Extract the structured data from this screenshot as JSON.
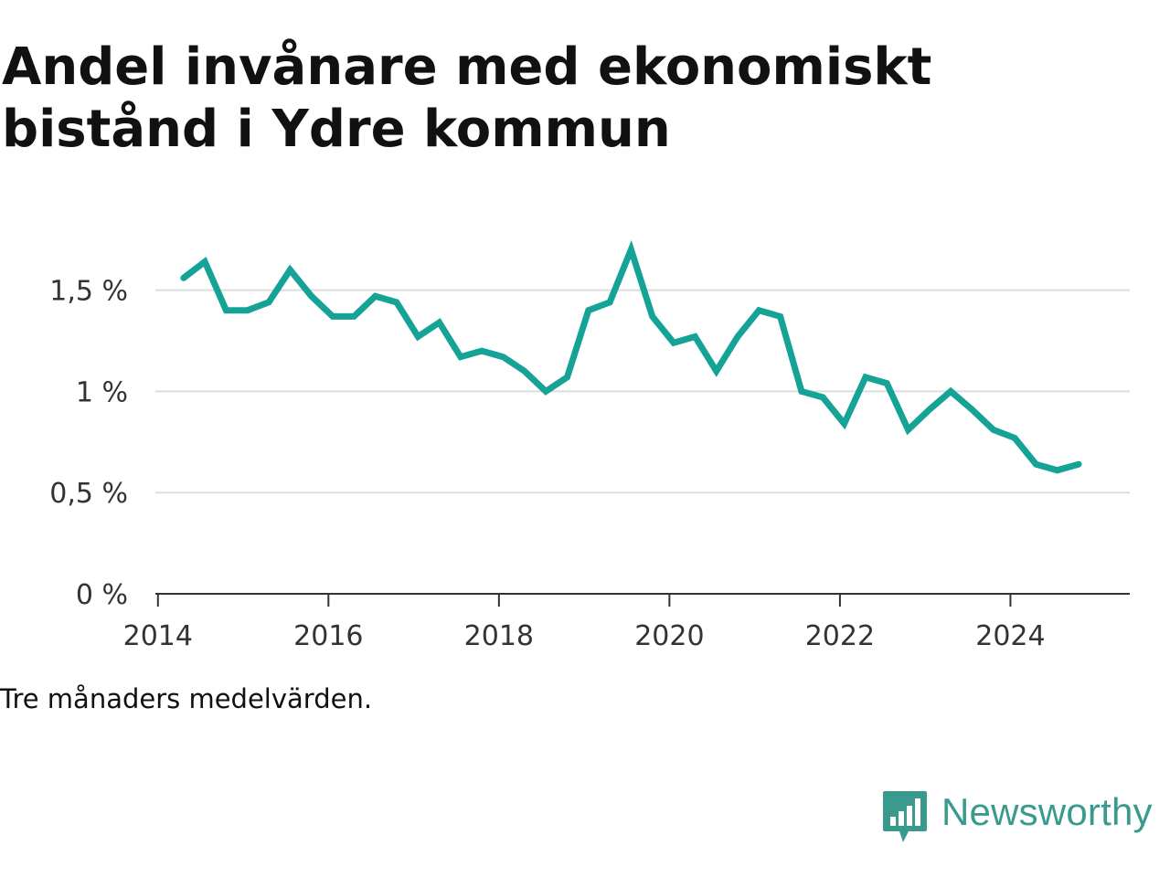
{
  "title_lines": [
    "Andel invånare med ekonomiskt",
    "bistånd i Ydre kommun"
  ],
  "caption": "Tre månaders medelvärden.",
  "brand": {
    "name": "Newsworthy",
    "logo_icon": "bar-chart-speech-bubble-icon"
  },
  "colors": {
    "line": "#14a396",
    "grid": "#dddddd",
    "axis": "#333333",
    "brand": "#3a9a8e"
  },
  "chart_data": {
    "type": "line",
    "x_axis": {
      "ticks": [
        2014,
        2016,
        2018,
        2020,
        2022,
        2024
      ],
      "tick_labels": [
        "2014",
        "2016",
        "2018",
        "2020",
        "2022",
        "2024"
      ],
      "range": [
        2013.97,
        2025.4
      ]
    },
    "y_axis": {
      "ticks": [
        0,
        0.5,
        1,
        1.5
      ],
      "tick_labels": [
        "0 %",
        "0,5 %",
        "1 %",
        "1,5 %"
      ],
      "range": [
        0,
        1.85
      ]
    },
    "grid": "horizontal",
    "series": [
      {
        "x": [
          2014.3,
          2014.55,
          2014.8,
          2015.05,
          2015.3,
          2015.55,
          2015.8,
          2016.05,
          2016.3,
          2016.55,
          2016.8,
          2017.05,
          2017.3,
          2017.55,
          2017.8,
          2018.05,
          2018.3,
          2018.55,
          2018.8,
          2019.05,
          2019.3,
          2019.55,
          2019.8,
          2020.05,
          2020.3,
          2020.55,
          2020.8,
          2021.05,
          2021.3,
          2021.55,
          2021.8,
          2022.05,
          2022.3,
          2022.55,
          2022.8,
          2023.05,
          2023.3,
          2023.55,
          2023.8,
          2024.05,
          2024.3,
          2024.55,
          2024.8
        ],
        "values": [
          1.56,
          1.64,
          1.4,
          1.4,
          1.44,
          1.6,
          1.47,
          1.37,
          1.37,
          1.47,
          1.44,
          1.27,
          1.34,
          1.17,
          1.2,
          1.17,
          1.1,
          1.0,
          1.07,
          1.4,
          1.44,
          1.7,
          1.37,
          1.24,
          1.27,
          1.1,
          1.27,
          1.4,
          1.37,
          1.0,
          0.97,
          0.84,
          1.07,
          1.04,
          0.81,
          0.91,
          1.0,
          0.91,
          0.81,
          0.77,
          0.64,
          0.61,
          0.64
        ]
      }
    ]
  }
}
